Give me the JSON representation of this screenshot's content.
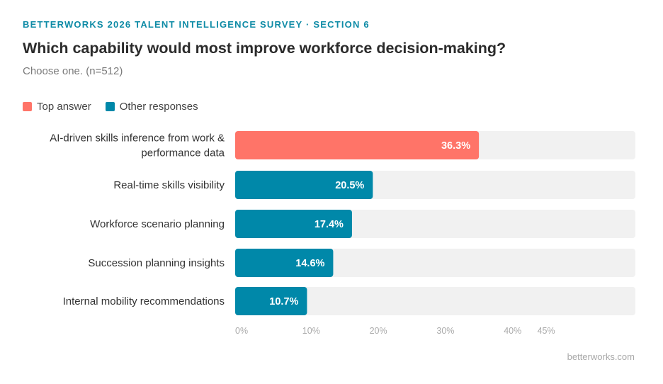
{
  "header": {
    "eyebrow": "BETTERWORKS 2026 TALENT INTELLIGENCE SURVEY · SECTION 6",
    "title": "Which capability would most improve workforce decision-making?",
    "subtitle": "Choose one. (n=512)"
  },
  "legend": {
    "top_label": "Top answer",
    "other_label": "Other responses"
  },
  "colors": {
    "top": "#ff7468",
    "other": "#0088a9",
    "track": "#f1f1f1",
    "accent": "#0e8ba6"
  },
  "footer": {
    "source": "betterworks.com"
  },
  "chart_data": {
    "type": "bar",
    "orientation": "horizontal",
    "categories": [
      "AI-driven skills inference from work & performance data",
      "Real-time skills visibility",
      "Workforce scenario planning",
      "Succession planning insights",
      "Internal mobility recommendations"
    ],
    "category_lines": [
      [
        "AI-driven skills inference from work &",
        "performance data"
      ],
      [
        "Real-time skills visibility"
      ],
      [
        "Workforce scenario planning"
      ],
      [
        "Succession planning insights"
      ],
      [
        "Internal mobility recommendations"
      ]
    ],
    "values": [
      36.3,
      20.5,
      17.4,
      14.6,
      10.7
    ],
    "value_labels": [
      "36.3%",
      "20.5%",
      "17.4%",
      "14.6%",
      "10.7%"
    ],
    "highlight": [
      "top",
      "other",
      "other",
      "other",
      "other"
    ],
    "xlim": [
      0,
      45
    ],
    "xticks": [
      0,
      10,
      20,
      30,
      40,
      45
    ],
    "xtick_labels": [
      "0%",
      "10%",
      "20%",
      "30%",
      "40%",
      "45%"
    ],
    "grid": false,
    "legend_position": "top-left"
  }
}
